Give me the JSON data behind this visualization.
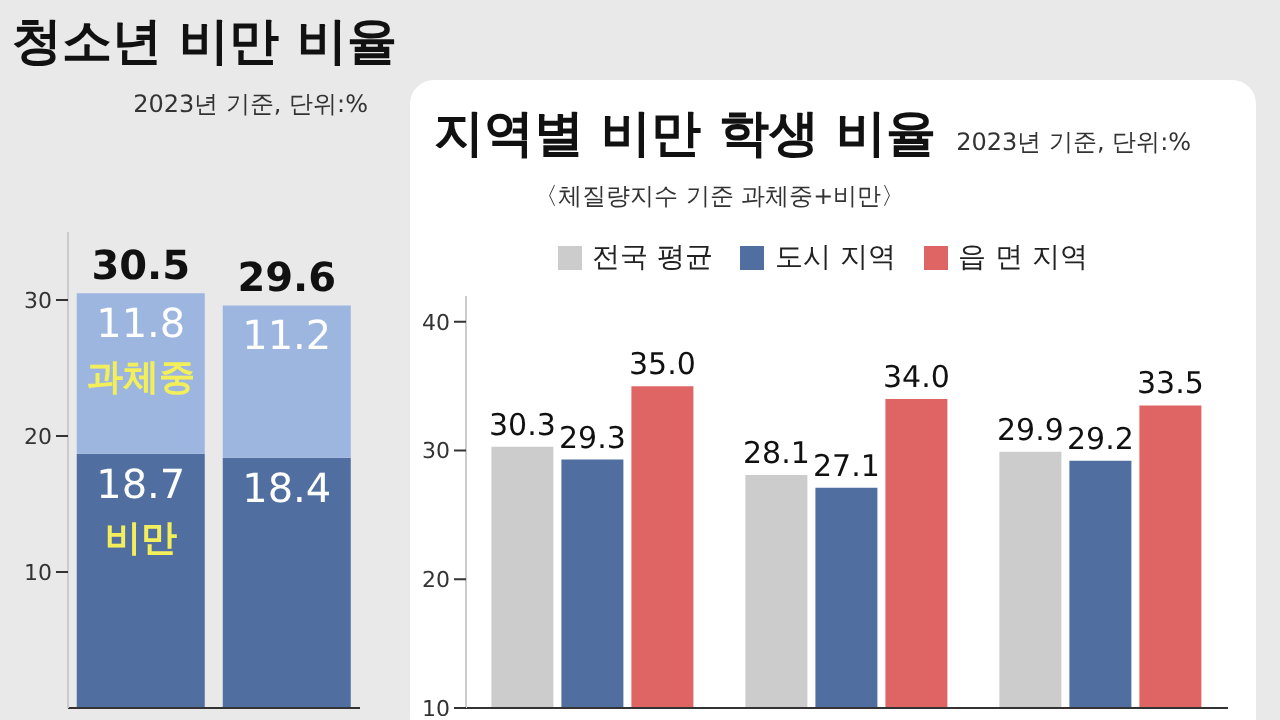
{
  "chart_data": [
    {
      "type": "bar",
      "title": "청소년 비만 비율",
      "subtitle": "2023년 기준, 단위:%",
      "categories": [
        null,
        null
      ],
      "stacked": true,
      "series": [
        {
          "name": "비만",
          "color": "#506ea0",
          "values": [
            18.7,
            18.4
          ],
          "value_labels": [
            "18.7",
            "18.4"
          ]
        },
        {
          "name": "과체중",
          "color": "#9db6df",
          "values": [
            11.8,
            11.2
          ],
          "value_labels": [
            "11.8",
            "11.2"
          ]
        }
      ],
      "totals": [
        "30.5",
        "29.6"
      ],
      "ylim": [
        0,
        35
      ],
      "yticks": [
        10,
        20,
        30
      ],
      "grid": false,
      "legend": false
    },
    {
      "type": "bar",
      "title": "지역별 비만 학생 비율",
      "subtitle": "2023년 기준, 단위:%",
      "annotations": [
        "〈체질량지수 기준 과체중+비만〉"
      ],
      "categories": [
        null,
        null,
        null
      ],
      "series": [
        {
          "name": "전국 평균",
          "color": "#cccccc",
          "values": [
            30.3,
            28.1,
            29.9
          ],
          "value_labels": [
            "30.3",
            "28.1",
            "29.9"
          ]
        },
        {
          "name": "도시 지역",
          "color": "#506ea0",
          "values": [
            29.3,
            27.1,
            29.2
          ],
          "value_labels": [
            "29.3",
            "27.1",
            "29.2"
          ]
        },
        {
          "name": "읍 면 지역",
          "color": "#df6464",
          "values": [
            35.0,
            34.0,
            33.5
          ],
          "value_labels": [
            "35.0",
            "34.0",
            "33.5"
          ]
        }
      ],
      "ylim": [
        10,
        42
      ],
      "yticks": [
        10,
        20,
        30,
        40
      ],
      "grid": false,
      "legend": "top left"
    }
  ]
}
